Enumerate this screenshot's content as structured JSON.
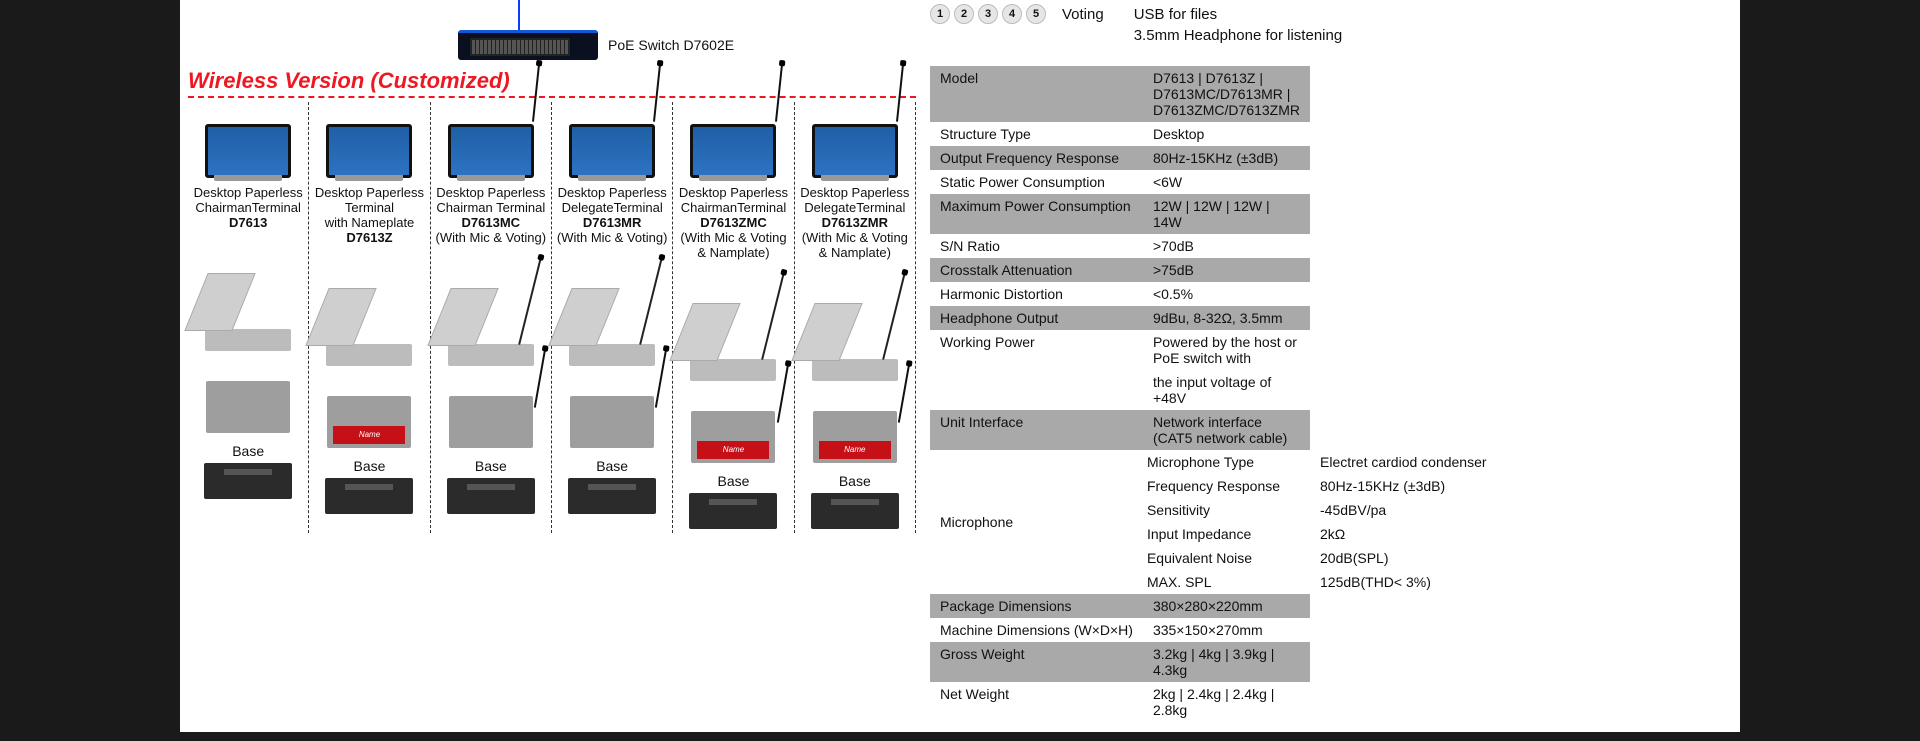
{
  "switch": {
    "label": "PoE Switch D7602E"
  },
  "heading": "Wireless Version (Customized)",
  "columns": [
    {
      "line1": "Desktop Paperless",
      "line2": "ChairmanTerminal",
      "model": "D7613",
      "note": "",
      "hasMic": false,
      "nameplate": false
    },
    {
      "line1": "Desktop Paperless",
      "line2": "Terminal",
      "model": "D7613Z",
      "note": "with Nameplate",
      "hasMic": false,
      "nameplate": true
    },
    {
      "line1": "Desktop Paperless",
      "line2": "Chairman Terminal",
      "model": "D7613MC",
      "note": "(With Mic & Voting)",
      "hasMic": true,
      "nameplate": false
    },
    {
      "line1": "Desktop Paperless",
      "line2": "DelegateTerminal",
      "model": "D7613MR",
      "note": "(With Mic & Voting)",
      "hasMic": true,
      "nameplate": false
    },
    {
      "line1": "Desktop Paperless",
      "line2": "ChairmanTerminal",
      "model": "D7613ZMC",
      "note": "(With Mic & Voting & Namplate)",
      "hasMic": true,
      "nameplate": true
    },
    {
      "line1": "Desktop Paperless",
      "line2": "DelegateTerminal",
      "model": "D7613ZMR",
      "note": "(With Mic & Voting & Namplate)",
      "hasMic": true,
      "nameplate": true
    }
  ],
  "nameplate_text": "Name",
  "base_label": "Base",
  "voting": {
    "buttons": [
      "1",
      "2",
      "3",
      "4",
      "5"
    ],
    "label": "Voting"
  },
  "features": {
    "line1": "USB for files",
    "line2": "3.5mm Headphone for listening"
  },
  "specs": [
    {
      "k": "Model",
      "v": "D7613 | D7613Z | D7613MC/D7613MR | D7613ZMC/D7613ZMR",
      "shade": true
    },
    {
      "k": "Structure Type",
      "v": "Desktop",
      "shade": false
    },
    {
      "k": "Output Frequency Response",
      "v": "80Hz-15KHz (±3dB)",
      "shade": true
    },
    {
      "k": "Static Power Consumption",
      "v": "<6W",
      "shade": false
    },
    {
      "k": "Maximum Power Consumption",
      "v": "12W | 12W | 12W | 14W",
      "shade": true
    },
    {
      "k": "S/N Ratio",
      "v": ">70dB",
      "shade": false
    },
    {
      "k": "Crosstalk Attenuation",
      "v": ">75dB",
      "shade": true
    },
    {
      "k": "Harmonic Distortion",
      "v": "<0.5%",
      "shade": false
    },
    {
      "k": "Headphone Output",
      "v": "9dBu, 8-32Ω, 3.5mm",
      "shade": true
    },
    {
      "k": "Working Power",
      "v": "Powered by the host or PoE switch with",
      "shade": false
    },
    {
      "k": "",
      "v": "the input voltage of +48V",
      "shade": false
    },
    {
      "k": "Unit Interface",
      "v": "Network interface (CAT5 network cable)",
      "shade": true
    }
  ],
  "mic_group_label": "Microphone",
  "mic_specs": [
    {
      "k": "Microphone Type",
      "v": "Electret cardiod condenser"
    },
    {
      "k": "Frequency Response",
      "v": "80Hz-15KHz (±3dB)"
    },
    {
      "k": "Sensitivity",
      "v": "-45dBV/pa"
    },
    {
      "k": "Input Impedance",
      "v": "2kΩ"
    },
    {
      "k": "Equivalent Noise",
      "v": "20dB(SPL)"
    },
    {
      "k": "MAX. SPL",
      "v": "125dB(THD< 3%)"
    }
  ],
  "specs2": [
    {
      "k": "Package Dimensions",
      "v": "380×280×220mm",
      "shade": true
    },
    {
      "k": "Machine Dimensions (W×D×H)",
      "v": "335×150×270mm",
      "shade": false
    },
    {
      "k": "Gross Weight",
      "v": "3.2kg | 4kg | 3.9kg | 4.3kg",
      "shade": true
    },
    {
      "k": "Net Weight",
      "v": "2kg | 2.4kg | 2.4kg | 2.8kg",
      "shade": false
    }
  ]
}
